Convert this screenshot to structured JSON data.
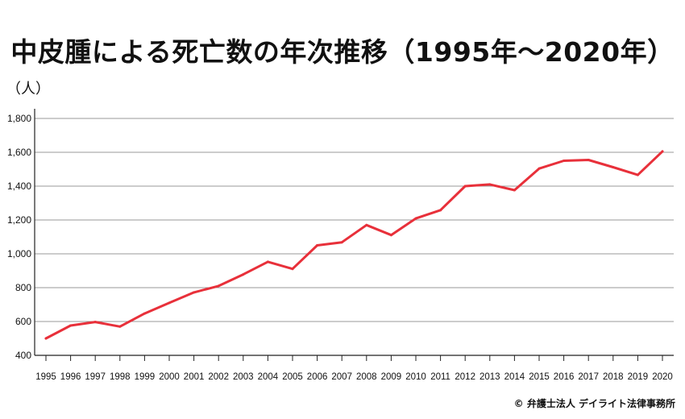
{
  "chart_data": {
    "type": "line",
    "title": "中皮腫による死亡数の年次推移（1995年～2020年）",
    "ylabel": "（人）",
    "xlabel": "",
    "x": [
      "1995",
      "1996",
      "1997",
      "1998",
      "1999",
      "2000",
      "2001",
      "2002",
      "2003",
      "2004",
      "2005",
      "2006",
      "2007",
      "2008",
      "2009",
      "2010",
      "2011",
      "2012",
      "2013",
      "2014",
      "2015",
      "2016",
      "2017",
      "2018",
      "2019",
      "2020"
    ],
    "series": [
      {
        "values": [
          500,
          576,
          597,
          570,
          647,
          710,
          772,
          810,
          878,
          953,
          911,
          1050,
          1068,
          1170,
          1111,
          1209,
          1258,
          1400,
          1410,
          1376,
          1504,
          1550,
          1555,
          1512,
          1466,
          1605
        ],
        "color": "#e8303a"
      }
    ],
    "ylim": [
      400,
      1800
    ],
    "yticks": [
      "400",
      "600",
      "800",
      "1,000",
      "1,200",
      "1,400",
      "1,600",
      "1,800"
    ],
    "grid": true
  },
  "footer": {
    "copyright": "© 弁護士法人 デイライト法律事務所"
  }
}
